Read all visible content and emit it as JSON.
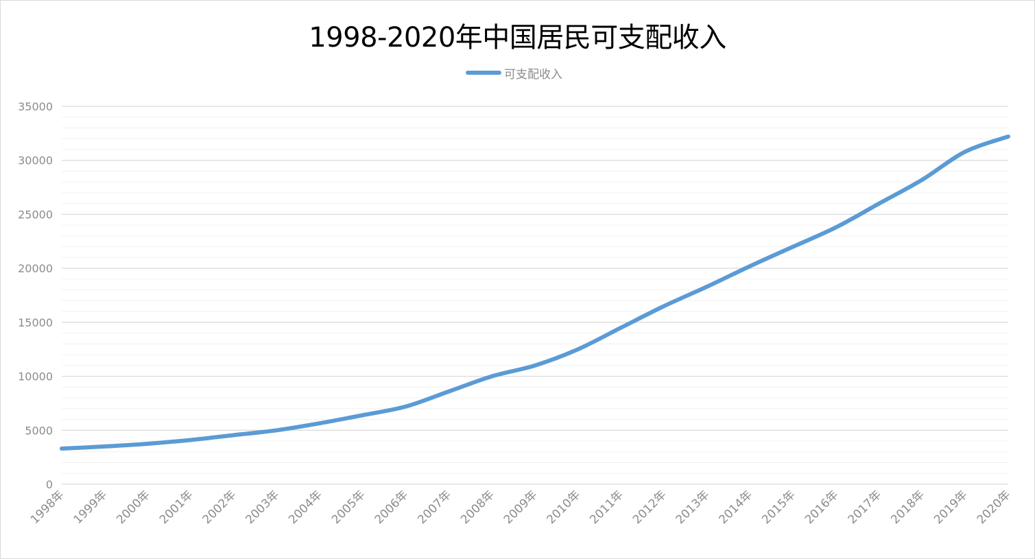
{
  "chart_data": {
    "type": "line",
    "title": "1998-2020年中国居民可支配收入",
    "xlabel": "",
    "ylabel": "",
    "categories": [
      "1998年",
      "1999年",
      "2000年",
      "2001年",
      "2002年",
      "2003年",
      "2004年",
      "2005年",
      "2006年",
      "2007年",
      "2008年",
      "2009年",
      "2010年",
      "2011年",
      "2012年",
      "2013年",
      "2014年",
      "2015年",
      "2016年",
      "2017年",
      "2018年",
      "2019年",
      "2020年"
    ],
    "series": [
      {
        "name": "可支配收入",
        "values": [
          3300,
          3500,
          3750,
          4100,
          4550,
          5000,
          5650,
          6400,
          7200,
          8600,
          10000,
          11000,
          12500,
          14500,
          16500,
          18300,
          20200,
          22000,
          23800,
          26000,
          28200,
          30800,
          32200
        ]
      }
    ],
    "ylim": [
      0,
      35000
    ],
    "yticks": [
      "0",
      "5000",
      "10000",
      "15000",
      "20000",
      "25000",
      "30000",
      "35000"
    ],
    "ytick_values": [
      0,
      5000,
      10000,
      15000,
      20000,
      25000,
      30000,
      35000
    ],
    "minor_grid_step": 1000,
    "grid": true,
    "legend_position": "top-center",
    "colors": {
      "series": "#5b9bd5",
      "major_grid": "#d9d9d9",
      "minor_grid": "#f0f0f0",
      "axis_text": "#8c8c8c",
      "title": "#000000"
    }
  }
}
